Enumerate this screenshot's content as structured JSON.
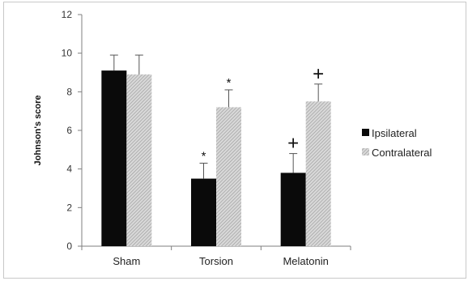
{
  "chart_data": {
    "type": "bar",
    "title": "",
    "xlabel": "",
    "ylabel": "Johnson's score",
    "ylim": [
      0,
      12
    ],
    "yticks": [
      "0",
      "2",
      "4",
      "6",
      "8",
      "10",
      "12"
    ],
    "categories": [
      "Sham",
      "Torsion",
      "Melatonin"
    ],
    "series": [
      {
        "name": "Ipsilateral",
        "values": [
          9.1,
          3.5,
          3.8
        ],
        "errors": [
          0.8,
          0.8,
          1.0
        ],
        "color": "#0a0a0a",
        "pattern": "solid"
      },
      {
        "name": "Contralateral",
        "values": [
          8.9,
          7.2,
          7.5
        ],
        "errors": [
          1.0,
          0.9,
          0.9
        ],
        "color": "#bdbdbd",
        "pattern": "diagonal-hatch"
      }
    ],
    "annotations": [
      {
        "series": 0,
        "category": 1,
        "text": "*"
      },
      {
        "series": 1,
        "category": 1,
        "text": "*"
      },
      {
        "series": 0,
        "category": 2,
        "text": "+"
      },
      {
        "series": 1,
        "category": 2,
        "text": "+"
      }
    ],
    "grid": false,
    "legend_position": "right"
  }
}
